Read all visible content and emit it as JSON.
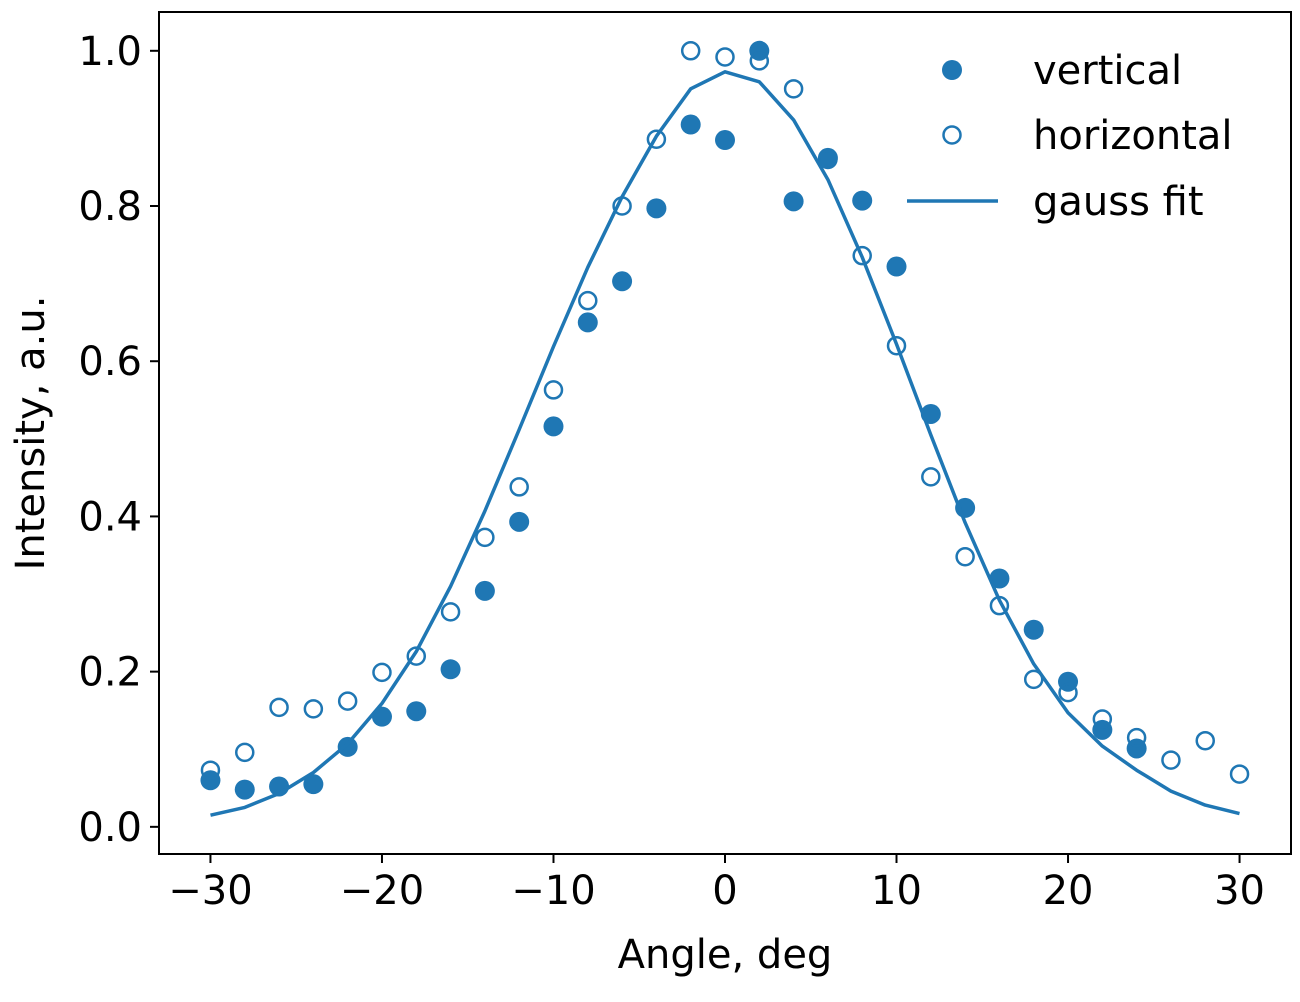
{
  "chart_data": {
    "type": "scatter",
    "title": "",
    "xlabel": "Angle, deg",
    "ylabel": "Intensity, a.u.",
    "xlim": [
      -33,
      33
    ],
    "ylim": [
      -0.035,
      1.05
    ],
    "xticks": [
      -30,
      -20,
      -10,
      0,
      10,
      20,
      30
    ],
    "xtick_labels": [
      "−30",
      "−20",
      "−10",
      "0",
      "10",
      "20",
      "30"
    ],
    "yticks": [
      0.0,
      0.2,
      0.4,
      0.6,
      0.8,
      1.0
    ],
    "ytick_labels": [
      "0.0",
      "0.2",
      "0.4",
      "0.6",
      "0.8",
      "1.0"
    ],
    "grid": false,
    "legend_position": "top-right",
    "color": "#1f77b4",
    "series": [
      {
        "name": "vertical",
        "style": "filled-marker",
        "x": [
          -30,
          -28,
          -26,
          -24,
          -22,
          -20,
          -18,
          -16,
          -14,
          -12,
          -10,
          -8,
          -6,
          -4,
          -2,
          0,
          2,
          4,
          6,
          8,
          10,
          12,
          14,
          16,
          18,
          20,
          22,
          24
        ],
        "y": [
          0.06,
          0.048,
          0.052,
          0.055,
          0.103,
          0.142,
          0.149,
          0.203,
          0.304,
          0.393,
          0.516,
          0.65,
          0.703,
          0.797,
          0.905,
          0.885,
          1.0,
          0.806,
          0.862,
          0.807,
          0.722,
          0.532,
          0.411,
          0.32,
          0.254,
          0.187,
          0.125,
          0.101
        ]
      },
      {
        "name": "horizontal",
        "style": "open-marker",
        "x": [
          -30,
          -28,
          -26,
          -24,
          -22,
          -20,
          -18,
          -16,
          -14,
          -12,
          -10,
          -8,
          -6,
          -4,
          -2,
          0,
          2,
          4,
          6,
          8,
          10,
          12,
          14,
          16,
          18,
          20,
          22,
          24,
          26,
          28,
          30
        ],
        "y": [
          0.073,
          0.096,
          0.154,
          0.152,
          0.162,
          0.199,
          0.22,
          0.277,
          0.373,
          0.438,
          0.563,
          0.678,
          0.8,
          0.886,
          1.0,
          0.992,
          0.987,
          0.951,
          0.86,
          0.736,
          0.62,
          0.451,
          0.348,
          0.285,
          0.19,
          0.173,
          0.139,
          0.115,
          0.086,
          0.111,
          0.068
        ]
      },
      {
        "name": "gauss fit",
        "style": "line",
        "x": [
          -30,
          -28,
          -26,
          -24,
          -22,
          -20,
          -18,
          -16,
          -14,
          -12,
          -10,
          -8,
          -6,
          -4,
          -2,
          0,
          2,
          4,
          6,
          8,
          10,
          12,
          14,
          16,
          18,
          20,
          22,
          24,
          26,
          28,
          30
        ],
        "y": [
          0.015,
          0.025,
          0.043,
          0.07,
          0.107,
          0.159,
          0.226,
          0.31,
          0.407,
          0.512,
          0.619,
          0.721,
          0.812,
          0.89,
          0.951,
          0.973,
          0.96,
          0.911,
          0.834,
          0.734,
          0.622,
          0.505,
          0.392,
          0.292,
          0.21,
          0.147,
          0.104,
          0.073,
          0.046,
          0.028,
          0.017
        ]
      }
    ]
  }
}
